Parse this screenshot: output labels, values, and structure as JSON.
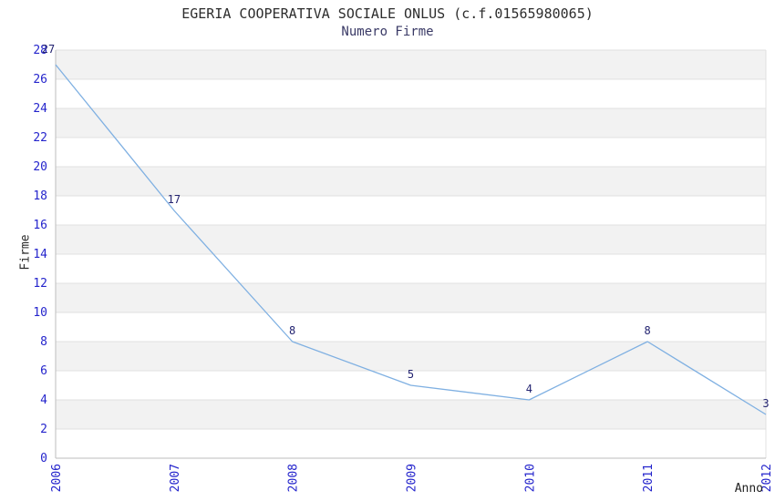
{
  "header": {
    "title": "EGERIA COOPERATIVA SOCIALE ONLUS (c.f.01565980065)",
    "subtitle": "Numero Firme"
  },
  "colors": {
    "band_fill": "#f2f2f2",
    "gridline": "#e0e0e0",
    "axis": "#bdbdbd",
    "series_line": "#7fb0e2",
    "tick_label": "#2424cc",
    "data_label": "#232370",
    "title": "#2d2d2d",
    "subtitle": "#3a3a66"
  },
  "chart_data": {
    "type": "line",
    "title": "EGERIA COOPERATIVA SOCIALE ONLUS (c.f.01565980065)",
    "subtitle": "Numero Firme",
    "xlabel": "Anno",
    "ylabel": "Firme",
    "categories": [
      "2006",
      "2007",
      "2008",
      "2009",
      "2010",
      "2011",
      "2012"
    ],
    "values": [
      27,
      17,
      8,
      5,
      4,
      8,
      3
    ],
    "ylim": [
      0,
      28
    ],
    "ytick_step": 2,
    "yticks": [
      0,
      2,
      4,
      6,
      8,
      10,
      12,
      14,
      16,
      18,
      20,
      22,
      24,
      26,
      28
    ],
    "grid": "alternating-horizontal-bands",
    "legend": "none",
    "series": [
      {
        "name": "Numero Firme",
        "values": [
          27,
          17,
          8,
          5,
          4,
          8,
          3
        ]
      }
    ]
  }
}
